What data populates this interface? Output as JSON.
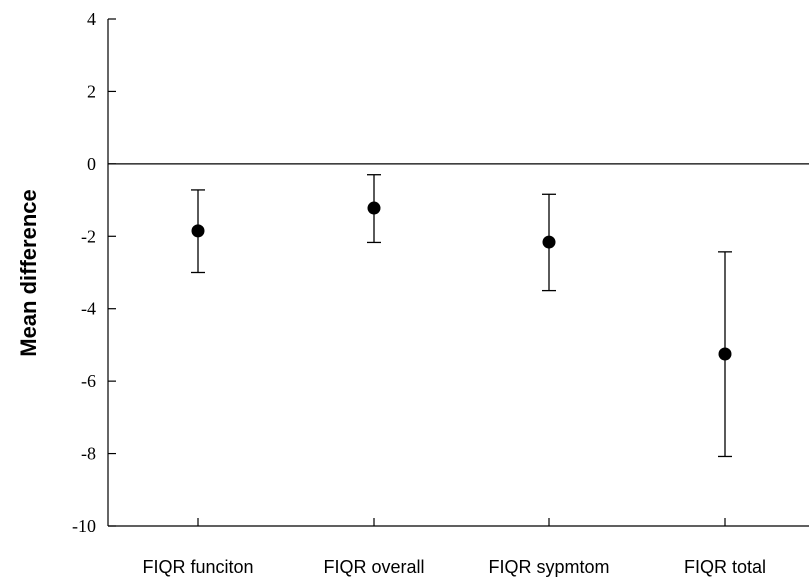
{
  "chart_data": {
    "type": "scatter",
    "title": "",
    "xlabel": "",
    "ylabel": "Mean difference",
    "ylim": [
      -10,
      4
    ],
    "yticks": [
      4,
      2,
      0,
      -2,
      -4,
      -6,
      -8,
      -10
    ],
    "grid": false,
    "reference_line": 0,
    "categories": [
      "FIQR funciton",
      "FIQR overall",
      "FIQR sypmtom",
      "FIQR total"
    ],
    "series": [
      {
        "values": [
          -1.85,
          -1.22,
          -2.16,
          -5.25
        ],
        "lower": [
          -3.0,
          -2.17,
          -3.5,
          -8.08
        ],
        "upper": [
          -0.72,
          -0.3,
          -0.84,
          -2.43
        ]
      }
    ],
    "colors": {
      "marker": "#000000",
      "axis": "#000000"
    }
  }
}
